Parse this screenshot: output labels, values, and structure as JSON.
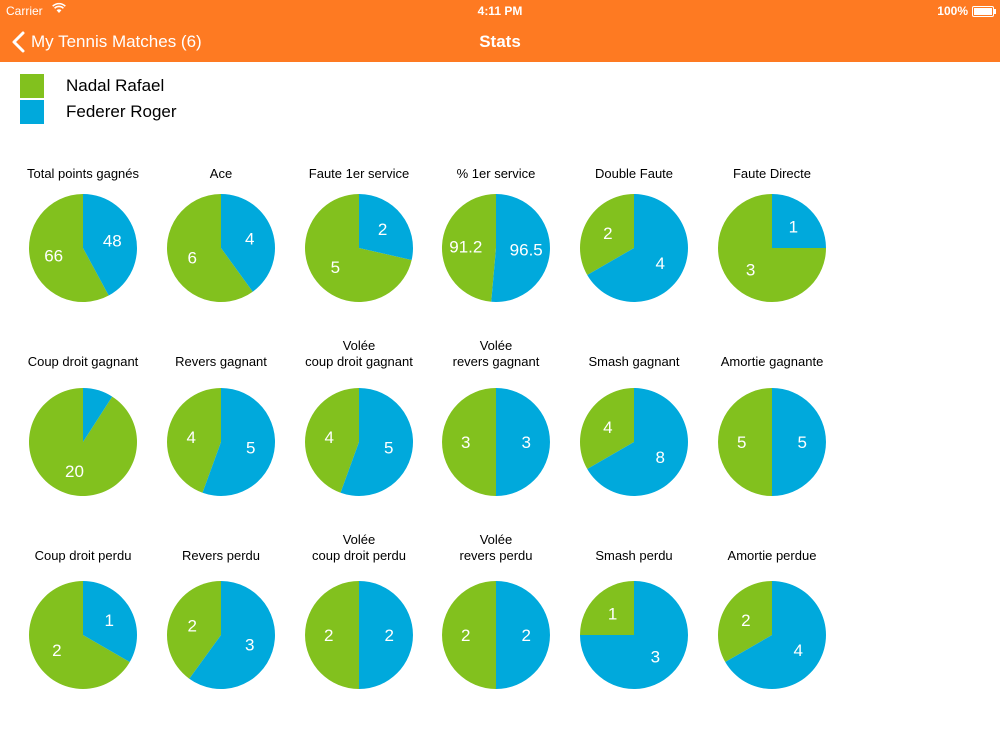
{
  "status_bar": {
    "carrier": "Carrier",
    "time": "4:11 PM",
    "battery": "100%"
  },
  "nav": {
    "back_label": "My Tennis Matches (6)",
    "title": "Stats"
  },
  "colors": {
    "accent": "#fe7a22",
    "player1": "#82c11e",
    "player2": "#00a9dc"
  },
  "legend": [
    {
      "name": "Nadal Rafael",
      "color": "#82c11e"
    },
    {
      "name": "Federer Roger",
      "color": "#00a9dc"
    }
  ],
  "chart_data": [
    {
      "type": "pie",
      "title": "Total points gagnés",
      "labels": [
        "Nadal Rafael",
        "Federer Roger"
      ],
      "values": [
        66,
        48
      ]
    },
    {
      "type": "pie",
      "title": "Ace",
      "labels": [
        "Nadal Rafael",
        "Federer Roger"
      ],
      "values": [
        6,
        4
      ]
    },
    {
      "type": "pie",
      "title": "Faute 1er service",
      "labels": [
        "Nadal Rafael",
        "Federer Roger"
      ],
      "values": [
        5,
        2
      ]
    },
    {
      "type": "pie",
      "title": "% 1er service",
      "labels": [
        "Nadal Rafael",
        "Federer Roger"
      ],
      "values": [
        91.2,
        96.5
      ]
    },
    {
      "type": "pie",
      "title": "Double Faute",
      "labels": [
        "Nadal Rafael",
        "Federer Roger"
      ],
      "values": [
        2,
        4
      ]
    },
    {
      "type": "pie",
      "title": "Faute Directe",
      "labels": [
        "Nadal Rafael",
        "Federer Roger"
      ],
      "values": [
        3,
        1
      ]
    },
    {
      "type": "pie",
      "title": "Coup droit gagnant",
      "labels": [
        "Nadal Rafael",
        "Federer Roger"
      ],
      "values": [
        20,
        2
      ],
      "value_labels": [
        "20",
        ""
      ]
    },
    {
      "type": "pie",
      "title": "Revers gagnant",
      "labels": [
        "Nadal Rafael",
        "Federer Roger"
      ],
      "values": [
        4,
        5
      ]
    },
    {
      "type": "pie",
      "title": "Volée\ncoup droit gagnant",
      "labels": [
        "Nadal Rafael",
        "Federer Roger"
      ],
      "values": [
        4,
        5
      ]
    },
    {
      "type": "pie",
      "title": "Volée\nrevers gagnant",
      "labels": [
        "Nadal Rafael",
        "Federer Roger"
      ],
      "values": [
        3,
        3
      ]
    },
    {
      "type": "pie",
      "title": "Smash gagnant",
      "labels": [
        "Nadal Rafael",
        "Federer Roger"
      ],
      "values": [
        4,
        8
      ]
    },
    {
      "type": "pie",
      "title": "Amortie gagnante",
      "labels": [
        "Nadal Rafael",
        "Federer Roger"
      ],
      "values": [
        5,
        5
      ]
    },
    {
      "type": "pie",
      "title": "Coup droit perdu",
      "labels": [
        "Nadal Rafael",
        "Federer Roger"
      ],
      "values": [
        2,
        1
      ]
    },
    {
      "type": "pie",
      "title": "Revers perdu",
      "labels": [
        "Nadal Rafael",
        "Federer Roger"
      ],
      "values": [
        2,
        3
      ]
    },
    {
      "type": "pie",
      "title": "Volée\ncoup droit perdu",
      "labels": [
        "Nadal Rafael",
        "Federer Roger"
      ],
      "values": [
        2,
        2
      ]
    },
    {
      "type": "pie",
      "title": "Volée\nrevers perdu",
      "labels": [
        "Nadal Rafael",
        "Federer Roger"
      ],
      "values": [
        2,
        2
      ]
    },
    {
      "type": "pie",
      "title": "Smash perdu",
      "labels": [
        "Nadal Rafael",
        "Federer Roger"
      ],
      "values": [
        1,
        3
      ]
    },
    {
      "type": "pie",
      "title": "Amortie perdue",
      "labels": [
        "Nadal Rafael",
        "Federer Roger"
      ],
      "values": [
        2,
        4
      ]
    }
  ]
}
